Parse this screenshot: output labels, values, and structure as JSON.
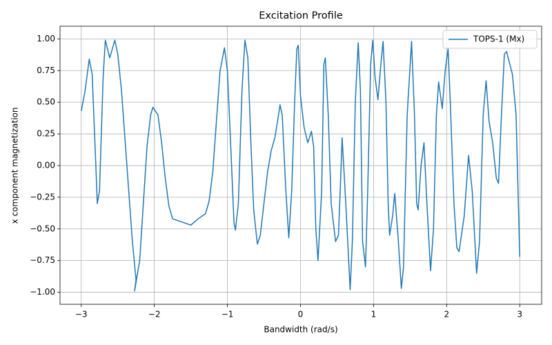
{
  "chart_data": {
    "type": "line",
    "title": "Excitation Profile",
    "x_label": "Bandwidth (rad/s)",
    "y_label": "x component magnetization",
    "x": [
      -3.0,
      -2.95,
      -2.89,
      -2.85,
      -2.8,
      -2.78,
      -2.75,
      -2.7,
      -2.67,
      -2.61,
      -2.54,
      -2.5,
      -2.45,
      -2.4,
      -2.35,
      -2.3,
      -2.25,
      -2.27,
      -2.2,
      -2.15,
      -2.1,
      -2.05,
      -2.02,
      -1.95,
      -1.9,
      -1.85,
      -1.8,
      -1.75,
      -1.7,
      -1.6,
      -1.5,
      -1.4,
      -1.3,
      -1.25,
      -1.2,
      -1.15,
      -1.1,
      -1.04,
      -1.0,
      -0.95,
      -0.91,
      -0.89,
      -0.85,
      -0.8,
      -0.76,
      -0.72,
      -0.68,
      -0.64,
      -0.59,
      -0.55,
      -0.5,
      -0.45,
      -0.4,
      -0.35,
      -0.3,
      -0.28,
      -0.25,
      -0.2,
      -0.16,
      -0.12,
      -0.08,
      -0.05,
      -0.03,
      0.0,
      0.05,
      0.1,
      0.15,
      0.18,
      0.21,
      0.24,
      0.29,
      0.32,
      0.34,
      0.38,
      0.42,
      0.48,
      0.52,
      0.55,
      0.57,
      0.62,
      0.68,
      0.71,
      0.75,
      0.79,
      0.82,
      0.85,
      0.89,
      0.92,
      0.96,
      0.99,
      1.02,
      1.06,
      1.1,
      1.13,
      1.17,
      1.2,
      1.22,
      1.26,
      1.29,
      1.34,
      1.38,
      1.41,
      1.46,
      1.52,
      1.56,
      1.59,
      1.61,
      1.65,
      1.69,
      1.73,
      1.78,
      1.82,
      1.86,
      1.89,
      1.94,
      1.98,
      2.02,
      2.05,
      2.1,
      2.14,
      2.17,
      2.24,
      2.3,
      2.35,
      2.41,
      2.45,
      2.5,
      2.54,
      2.58,
      2.63,
      2.68,
      2.71,
      2.75,
      2.79,
      2.82,
      2.9,
      2.95,
      3.0
    ],
    "series": [
      {
        "name": "TOPS-1 (Mx)",
        "color": "#1f77b4",
        "values": [
          0.43,
          0.58,
          0.84,
          0.72,
          0.0,
          -0.3,
          -0.2,
          0.7,
          0.99,
          0.85,
          0.99,
          0.88,
          0.6,
          0.2,
          -0.2,
          -0.6,
          -0.9,
          -0.99,
          -0.75,
          -0.3,
          0.15,
          0.4,
          0.46,
          0.4,
          0.18,
          -0.1,
          -0.32,
          -0.42,
          -0.43,
          -0.45,
          -0.47,
          -0.42,
          -0.38,
          -0.28,
          -0.05,
          0.35,
          0.75,
          0.93,
          0.75,
          0.1,
          -0.45,
          -0.51,
          -0.3,
          0.6,
          0.99,
          0.85,
          0.2,
          -0.35,
          -0.62,
          -0.55,
          -0.3,
          -0.05,
          0.12,
          0.22,
          0.4,
          0.48,
          0.4,
          -0.2,
          -0.57,
          -0.2,
          0.5,
          0.92,
          0.95,
          0.55,
          0.3,
          0.18,
          0.27,
          0.15,
          -0.5,
          -0.75,
          -0.2,
          0.8,
          0.85,
          0.4,
          -0.3,
          -0.6,
          -0.55,
          -0.1,
          0.22,
          -0.3,
          -0.98,
          -0.6,
          0.5,
          0.97,
          0.6,
          -0.6,
          -0.8,
          -0.2,
          0.8,
          0.99,
          0.7,
          0.52,
          0.8,
          0.98,
          0.5,
          -0.3,
          -0.55,
          -0.4,
          -0.22,
          -0.6,
          -0.97,
          -0.8,
          0.4,
          0.98,
          0.4,
          -0.3,
          -0.35,
          0.0,
          0.18,
          -0.3,
          -0.83,
          -0.5,
          0.4,
          0.66,
          0.45,
          0.75,
          0.92,
          0.5,
          -0.3,
          -0.65,
          -0.68,
          -0.4,
          0.08,
          -0.2,
          -0.85,
          -0.6,
          0.4,
          0.67,
          0.35,
          0.18,
          -0.1,
          -0.14,
          0.4,
          0.88,
          0.9,
          0.72,
          0.4,
          -0.72
        ]
      }
    ],
    "xlim": [
      -3.29,
      3.3
    ],
    "ylim": [
      -1.095,
      1.1
    ],
    "xticks": [
      {
        "value": -3,
        "label": "−3"
      },
      {
        "value": -2,
        "label": "−2"
      },
      {
        "value": -1,
        "label": "−1"
      },
      0,
      1,
      2,
      3
    ],
    "yticks": [
      {
        "value": -1,
        "label": "−1.00"
      },
      {
        "value": -0.75,
        "label": "−0.75"
      },
      {
        "value": -0.5,
        "label": "−0.50"
      },
      {
        "value": -0.25,
        "label": "−0.25"
      },
      {
        "value": 0,
        "label": "0.00"
      },
      0.25,
      {
        "value": 0.5,
        "label": "0.50"
      },
      0.75,
      {
        "value": 1,
        "label": "1.00"
      }
    ],
    "grid": true,
    "legend": "upper right"
  }
}
